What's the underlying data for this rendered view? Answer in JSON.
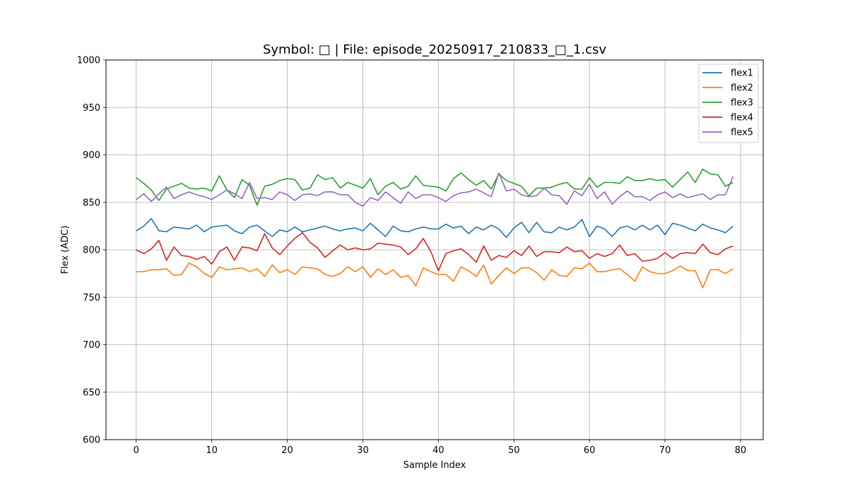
{
  "chart_data": {
    "type": "line",
    "title": "Symbol: □ | File: episode_20250917_210833_□_1.csv",
    "xlabel": "Sample Index",
    "ylabel": "Flex (ADC)",
    "xlim": [
      -4,
      83
    ],
    "ylim": [
      600,
      1000
    ],
    "xticks": [
      0,
      10,
      20,
      30,
      40,
      50,
      60,
      70,
      80
    ],
    "yticks": [
      600,
      650,
      700,
      750,
      800,
      850,
      900,
      950,
      1000
    ],
    "grid": true,
    "legend_position": "top-right",
    "x_start": 0,
    "series": [
      {
        "name": "flex1",
        "color": "#1f77b4",
        "values": [
          820,
          825,
          833,
          820,
          819,
          824,
          823,
          822,
          826,
          819,
          824,
          825,
          826,
          820,
          817,
          824,
          826,
          820,
          814,
          821,
          819,
          824,
          819,
          821,
          823,
          825,
          822,
          820,
          822,
          823,
          820,
          828,
          821,
          814,
          825,
          820,
          819,
          822,
          824,
          822,
          822,
          827,
          823,
          825,
          817,
          824,
          821,
          826,
          822,
          813,
          823,
          829,
          818,
          829,
          819,
          818,
          824,
          821,
          824,
          832,
          814,
          825,
          822,
          814,
          823,
          825,
          821,
          826,
          821,
          826,
          816,
          828,
          826,
          823,
          820,
          827,
          823,
          821,
          818,
          825
        ]
      },
      {
        "name": "flex2",
        "color": "#ff7f0e",
        "values": [
          777,
          777,
          779,
          779,
          780,
          773,
          774,
          786,
          782,
          775,
          771,
          782,
          779,
          780,
          781,
          777,
          780,
          772,
          784,
          776,
          779,
          774,
          782,
          781,
          780,
          774,
          772,
          775,
          782,
          777,
          782,
          771,
          780,
          774,
          779,
          771,
          773,
          762,
          781,
          777,
          774,
          774,
          767,
          782,
          778,
          772,
          784,
          764,
          773,
          781,
          775,
          781,
          781,
          776,
          768,
          779,
          773,
          772,
          781,
          780,
          786,
          777,
          777,
          779,
          780,
          774,
          767,
          782,
          777,
          775,
          775,
          778,
          783,
          778,
          778,
          760,
          779,
          779,
          775,
          780
        ]
      },
      {
        "name": "flex3",
        "color": "#2ca02c",
        "values": [
          876,
          870,
          863,
          852,
          864,
          867,
          870,
          865,
          864,
          865,
          862,
          878,
          863,
          855,
          874,
          868,
          847,
          867,
          869,
          873,
          875,
          874,
          863,
          865,
          879,
          874,
          876,
          865,
          871,
          868,
          865,
          875,
          858,
          867,
          871,
          864,
          867,
          878,
          868,
          867,
          866,
          862,
          875,
          881,
          874,
          868,
          873,
          864,
          880,
          873,
          870,
          867,
          857,
          865,
          865,
          866,
          869,
          871,
          864,
          864,
          876,
          866,
          871,
          871,
          870,
          877,
          873,
          873,
          875,
          873,
          874,
          866,
          874,
          882,
          871,
          885,
          880,
          879,
          867,
          871
        ]
      },
      {
        "name": "flex4",
        "color": "#d62728",
        "values": [
          800,
          796,
          801,
          810,
          789,
          803,
          794,
          793,
          790,
          793,
          785,
          798,
          803,
          789,
          803,
          802,
          799,
          817,
          802,
          795,
          804,
          812,
          818,
          808,
          802,
          792,
          799,
          805,
          800,
          802,
          800,
          801,
          807,
          806,
          805,
          803,
          795,
          801,
          812,
          798,
          778,
          796,
          799,
          801,
          795,
          787,
          804,
          789,
          794,
          792,
          799,
          794,
          804,
          793,
          798,
          798,
          797,
          803,
          798,
          799,
          791,
          796,
          793,
          796,
          805,
          794,
          796,
          788,
          789,
          791,
          797,
          791,
          796,
          797,
          796,
          806,
          797,
          795,
          801,
          804
        ]
      },
      {
        "name": "flex5",
        "color": "#9467bd",
        "values": [
          853,
          859,
          851,
          859,
          866,
          854,
          858,
          861,
          858,
          856,
          853,
          858,
          863,
          859,
          854,
          871,
          854,
          855,
          853,
          861,
          858,
          852,
          858,
          859,
          857,
          861,
          861,
          858,
          858,
          850,
          846,
          855,
          852,
          861,
          855,
          849,
          861,
          854,
          858,
          858,
          855,
          851,
          857,
          860,
          861,
          864,
          860,
          856,
          881,
          862,
          864,
          858,
          856,
          857,
          865,
          858,
          857,
          848,
          862,
          857,
          869,
          854,
          861,
          848,
          856,
          862,
          856,
          856,
          852,
          858,
          861,
          855,
          859,
          855,
          857,
          859,
          853,
          858,
          858,
          877
        ]
      }
    ]
  }
}
